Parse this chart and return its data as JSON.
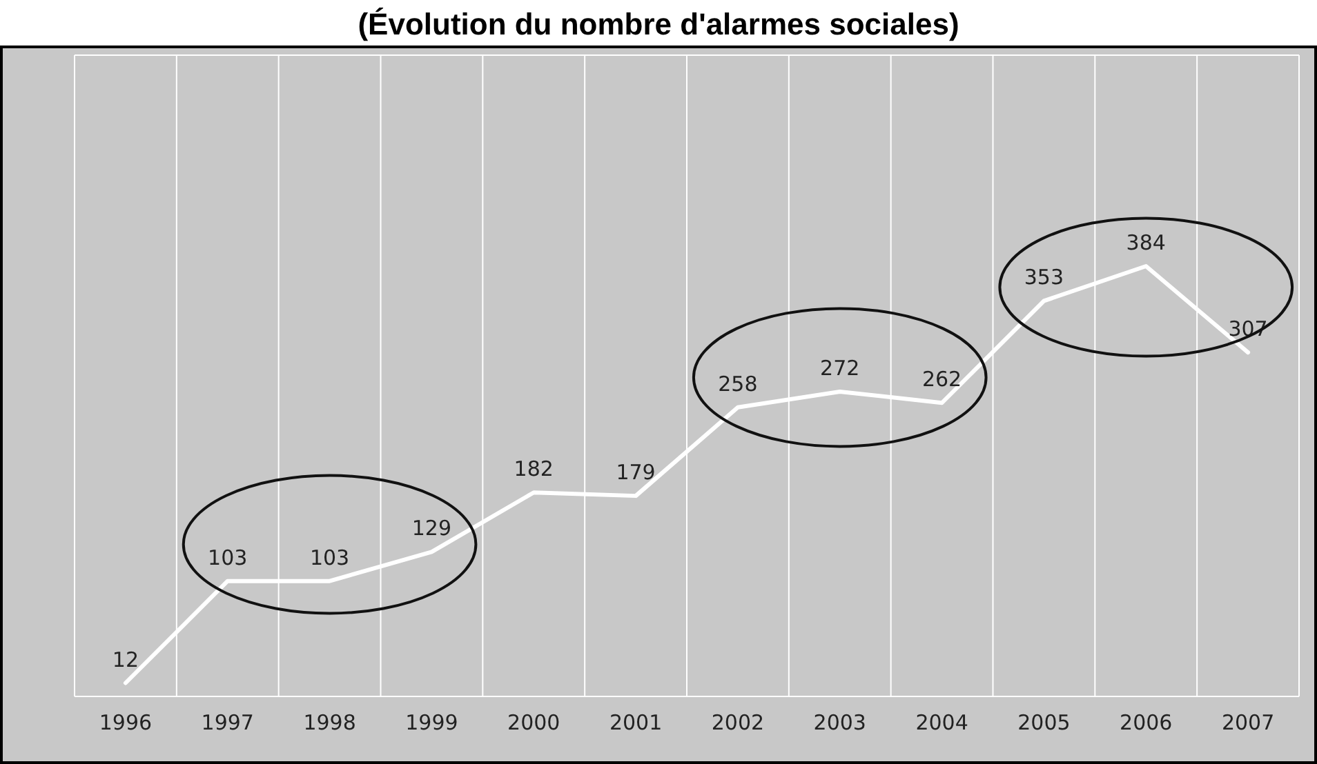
{
  "chart_data": {
    "type": "line",
    "title": "(Évolution du nombre d'alarmes sociales)",
    "categories": [
      "1996",
      "1997",
      "1998",
      "1999",
      "2000",
      "2001",
      "2002",
      "2003",
      "2004",
      "2005",
      "2006",
      "2007"
    ],
    "values": [
      12,
      103,
      103,
      129,
      182,
      179,
      258,
      272,
      262,
      353,
      384,
      307
    ],
    "color": "#ffffff",
    "data_labels": true,
    "grid": "x",
    "marker": "none",
    "line_style": "solid"
  }
}
